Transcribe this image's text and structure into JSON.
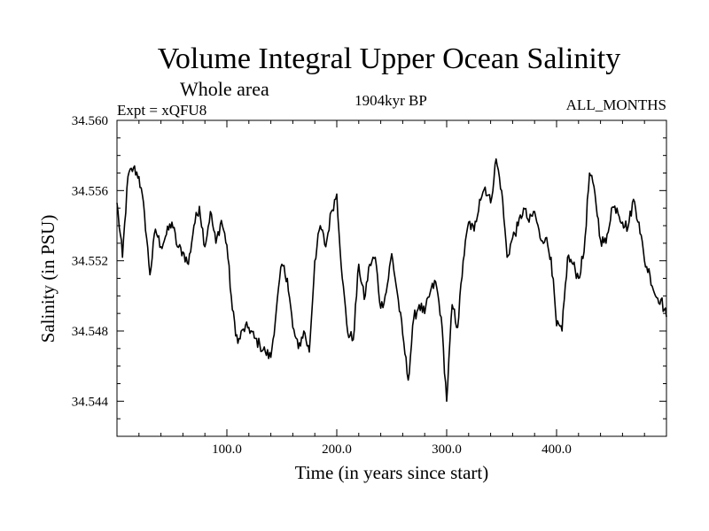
{
  "chart_data": {
    "type": "line",
    "title": "Volume Integral Upper Ocean Salinity",
    "subtitle": "Whole area",
    "experiment": "Expt = xQFU8",
    "period": "1904kyr BP",
    "months": "ALL_MONTHS",
    "xlabel": "Time (in years since start)",
    "ylabel": "Salinity (in PSU)",
    "xlim": [
      0,
      500
    ],
    "ylim": [
      34.542,
      34.56
    ],
    "x_ticks": [
      100,
      200,
      300,
      400
    ],
    "x_tick_labels": [
      "100.0",
      "200.0",
      "300.0",
      "400.0"
    ],
    "y_ticks": [
      34.544,
      34.548,
      34.552,
      34.556,
      34.56
    ],
    "y_tick_labels": [
      "34.544",
      "34.548",
      "34.552",
      "34.556",
      "34.560"
    ],
    "grid": false,
    "series": [
      {
        "name": "Salinity",
        "x": [
          0,
          5,
          10,
          15,
          20,
          25,
          30,
          35,
          40,
          45,
          50,
          55,
          60,
          65,
          70,
          75,
          80,
          85,
          90,
          95,
          100,
          105,
          110,
          115,
          120,
          125,
          130,
          135,
          140,
          145,
          150,
          155,
          160,
          165,
          170,
          175,
          180,
          185,
          190,
          195,
          200,
          205,
          210,
          215,
          220,
          225,
          230,
          235,
          240,
          245,
          250,
          255,
          260,
          265,
          270,
          275,
          280,
          285,
          290,
          295,
          300,
          305,
          310,
          315,
          320,
          325,
          330,
          335,
          340,
          345,
          350,
          355,
          360,
          365,
          370,
          375,
          380,
          385,
          390,
          395,
          400,
          405,
          410,
          415,
          420,
          425,
          430,
          435,
          440,
          445,
          450,
          455,
          460,
          465,
          470,
          475,
          480,
          485,
          490,
          495,
          500
        ],
        "values": [
          34.5553,
          34.5522,
          34.5568,
          34.5573,
          34.5568,
          34.5547,
          34.5512,
          34.5538,
          34.5528,
          34.5535,
          34.5542,
          34.5528,
          34.5525,
          34.5518,
          34.554,
          34.5551,
          34.5528,
          34.5548,
          34.553,
          34.5543,
          34.5529,
          34.5492,
          34.5473,
          34.5481,
          34.5482,
          34.5476,
          34.5472,
          34.5468,
          34.5465,
          34.5492,
          34.5518,
          34.551,
          34.5482,
          34.547,
          34.548,
          34.5468,
          34.552,
          34.554,
          34.5528,
          34.5548,
          34.5558,
          34.551,
          34.5479,
          34.5475,
          34.5518,
          34.5498,
          34.5518,
          34.5522,
          34.5493,
          34.5502,
          34.5524,
          34.5502,
          34.5478,
          34.5452,
          34.5487,
          34.5495,
          34.549,
          34.5502,
          34.5508,
          34.5488,
          34.544,
          34.5495,
          34.5482,
          34.552,
          34.5542,
          34.5537,
          34.5555,
          34.5562,
          34.5553,
          34.5578,
          34.556,
          34.5522,
          34.5533,
          34.554,
          34.555,
          34.5542,
          34.5548,
          34.5533,
          34.5533,
          34.5522,
          34.5483,
          34.548,
          34.5522,
          34.5518,
          34.551,
          34.5525,
          34.557,
          34.5558,
          34.5532,
          34.553,
          34.555,
          34.555,
          34.5542,
          34.5539,
          34.5555,
          34.5542,
          34.552,
          34.5512,
          34.55,
          34.5498,
          34.5488
        ]
      }
    ]
  }
}
